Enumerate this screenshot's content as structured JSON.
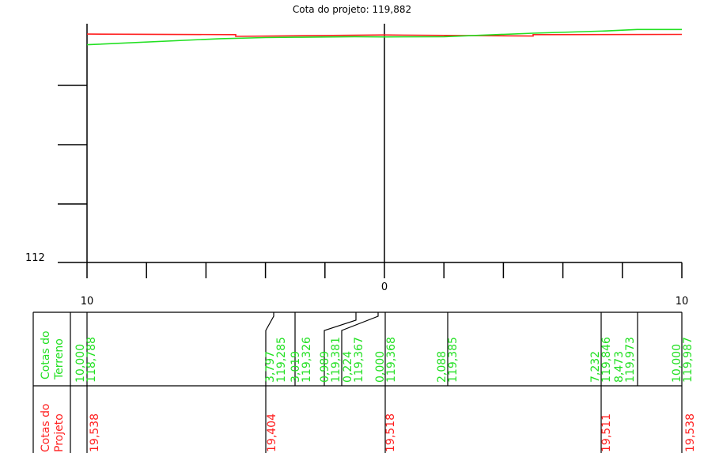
{
  "chart_data": {
    "type": "line",
    "title": "Cota do projeto: 119,882",
    "y_label_bottom": "112",
    "x_tick_labels": [
      "10",
      "0",
      "10"
    ],
    "x": [
      -10,
      10
    ],
    "ylim": [
      112,
      120.3
    ],
    "series": [
      {
        "color": "#ff1f1f",
        "points": [
          [
            -10,
            119.94
          ],
          [
            -5,
            119.92
          ],
          [
            -5,
            119.86
          ],
          [
            0,
            119.91
          ],
          [
            5,
            119.87
          ],
          [
            5,
            119.92
          ],
          [
            10,
            119.93
          ]
        ]
      },
      {
        "color": "#22e022",
        "points": [
          [
            -10,
            119.57
          ],
          [
            -5.5,
            119.78
          ],
          [
            -4,
            119.82
          ],
          [
            -3,
            119.83
          ],
          [
            -1,
            119.85
          ],
          [
            0,
            119.84
          ],
          [
            2,
            119.85
          ],
          [
            5,
            119.97
          ],
          [
            7.5,
            120.05
          ],
          [
            8.5,
            120.1
          ],
          [
            10,
            120.1
          ]
        ]
      }
    ],
    "table": {
      "terrain_header_line1": "Cotas do",
      "terrain_header_line2": "Terreno",
      "project_header_line1": "Cotas do",
      "project_header_line2": "Projeto",
      "terrain_pairs": [
        {
          "dist": "10,000",
          "cota": "118,788"
        },
        {
          "dist": "3,797",
          "cota": "119,285"
        },
        {
          "dist": "3,019",
          "cota": "119,326"
        },
        {
          "dist": "0,989",
          "cota": "119,381"
        },
        {
          "dist": "0,224",
          "cota": "119,367"
        },
        {
          "dist": "0,000",
          "cota": "119,368"
        },
        {
          "dist": "2,088",
          "cota": "119,385"
        },
        {
          "dist": "7,232",
          "cota": "119,846"
        },
        {
          "dist": "8,473",
          "cota": "119,973"
        },
        {
          "dist": "10,000",
          "cota": "119,987"
        }
      ],
      "project_values": [
        "19,538",
        "19,404",
        "19,518",
        "19,511",
        "19,538"
      ]
    }
  }
}
